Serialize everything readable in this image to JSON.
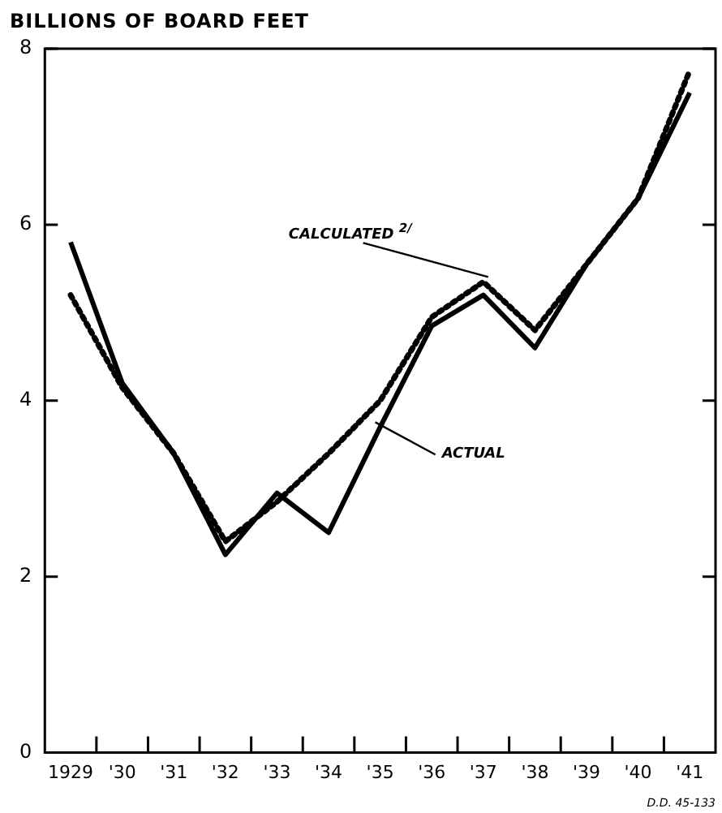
{
  "chart_data": {
    "type": "line",
    "ylabel": "BILLIONS OF BOARD FEET",
    "categories": [
      "1929",
      "'30",
      "'31",
      "'32",
      "'33",
      "'34",
      "'35",
      "'36",
      "'37",
      "'38",
      "'39",
      "'40",
      "'41"
    ],
    "ylim": [
      0,
      8
    ],
    "yticks": [
      0,
      2,
      4,
      6,
      8
    ],
    "grid": false,
    "legend": false,
    "marker": "none",
    "series": [
      {
        "color": "#000000",
        "line_style": "solid",
        "values": [
          5.8,
          4.2,
          3.4,
          2.25,
          2.95,
          2.5,
          3.7,
          4.85,
          5.2,
          4.6,
          5.55,
          6.3,
          7.5
        ]
      },
      {
        "color": "#000000",
        "line_style": "dotted",
        "values": [
          5.2,
          4.15,
          3.4,
          2.4,
          2.85,
          3.4,
          4.0,
          4.95,
          5.35,
          4.8,
          5.55,
          6.3,
          7.75
        ]
      }
    ],
    "annotations": [
      {
        "text": "CALCULATED $^{2/}$",
        "x": "'37",
        "y": 5.35
      },
      {
        "text": "ACTUAL",
        "x": "'35",
        "y": 3.7
      },
      "D.D. 45-133"
    ]
  }
}
